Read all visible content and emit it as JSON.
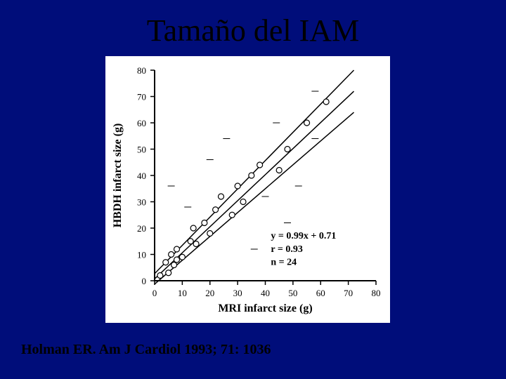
{
  "title": "Tamaño del IAM",
  "citation": "Holman ER. Am J Cardiol 1993; 71: 1036",
  "chart": {
    "type": "scatter",
    "background_color": "#ffffff",
    "grid_color": "#000000",
    "xlabel": "MRI infarct size (g)",
    "ylabel": "HBDH infarct size (g)",
    "label_fontsize": 16,
    "tick_fontsize": 13,
    "xlim": [
      0,
      80
    ],
    "ylim": [
      0,
      80
    ],
    "xtick_step": 10,
    "ytick_step": 10,
    "marker": "circle",
    "marker_size": 4,
    "marker_fill": "#ffffff",
    "marker_stroke": "#000000",
    "points": [
      [
        2,
        2
      ],
      [
        4,
        7
      ],
      [
        5,
        3
      ],
      [
        6,
        10
      ],
      [
        7,
        6
      ],
      [
        8,
        12
      ],
      [
        8,
        8
      ],
      [
        10,
        9
      ],
      [
        13,
        15
      ],
      [
        14,
        20
      ],
      [
        15,
        14
      ],
      [
        18,
        22
      ],
      [
        20,
        18
      ],
      [
        22,
        27
      ],
      [
        24,
        32
      ],
      [
        28,
        25
      ],
      [
        30,
        36
      ],
      [
        32,
        30
      ],
      [
        35,
        40
      ],
      [
        38,
        44
      ],
      [
        45,
        42
      ],
      [
        48,
        50
      ],
      [
        55,
        60
      ],
      [
        62,
        68
      ]
    ],
    "regression": {
      "slope": 0.99,
      "intercept": 0.71,
      "confidence_band": true,
      "line_width": 1.5
    },
    "annotation": {
      "equation": "y = 0.99x + 0.71",
      "r": "r = 0.93",
      "n": "n = 24",
      "fontsize": 14
    },
    "dashes": [
      [
        6,
        36
      ],
      [
        12,
        28
      ],
      [
        20,
        46
      ],
      [
        26,
        54
      ],
      [
        40,
        32
      ],
      [
        48,
        22
      ],
      [
        52,
        36
      ],
      [
        36,
        12
      ],
      [
        58,
        72
      ],
      [
        58,
        54
      ],
      [
        44,
        60
      ]
    ]
  }
}
